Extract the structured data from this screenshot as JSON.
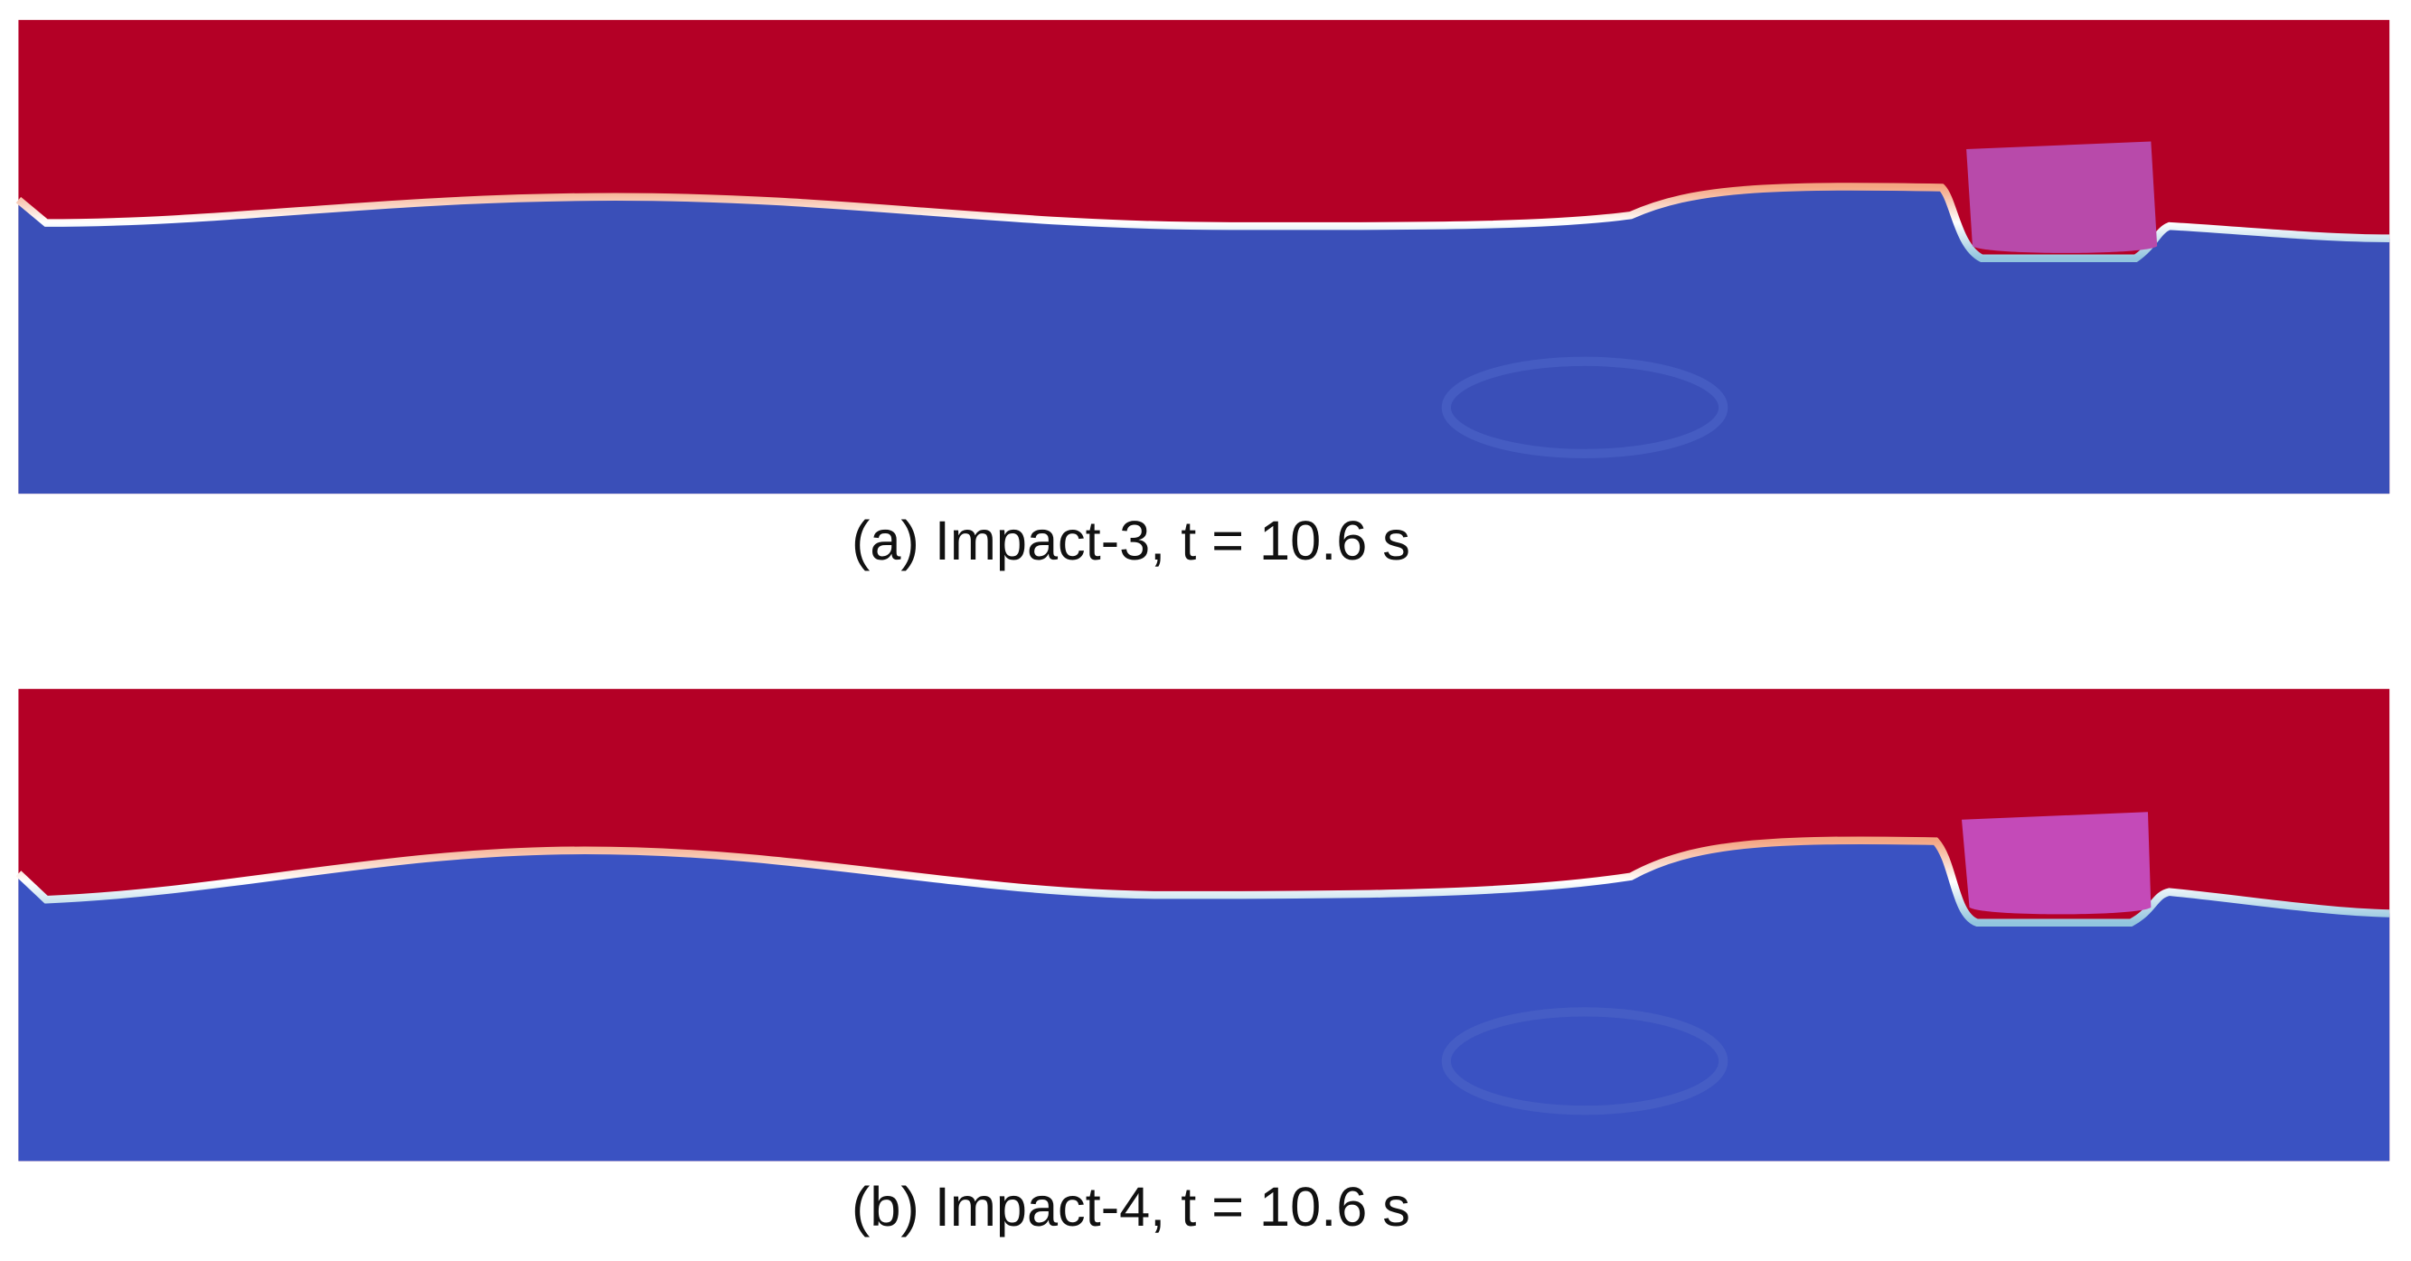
{
  "panels": [
    {
      "caption": "(a) Impact-3, t = 10.6 s"
    },
    {
      "caption": "(b) Impact-4, t = 10.6 s"
    }
  ]
}
